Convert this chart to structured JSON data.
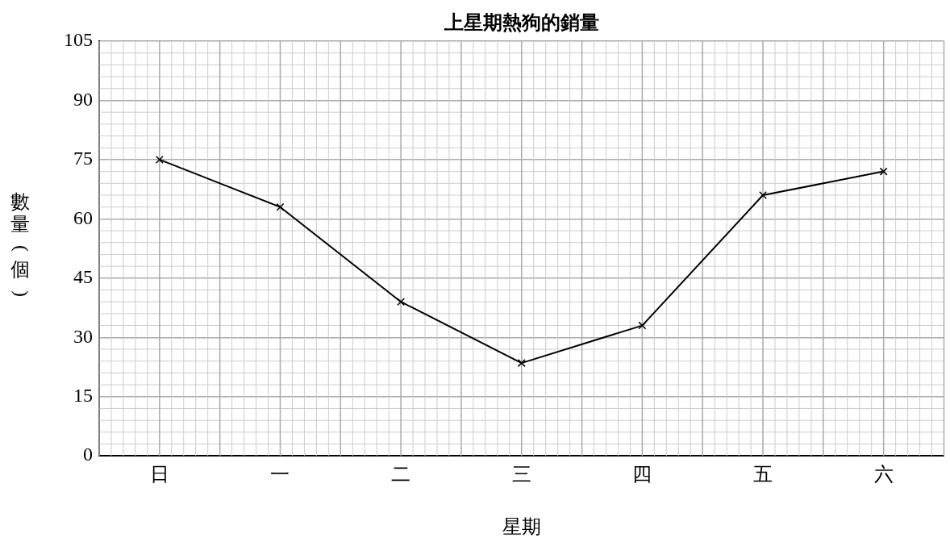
{
  "chart_data": {
    "type": "line",
    "title": "上星期熱狗的銷量",
    "xlabel": "星期",
    "ylabel": "數量(個)",
    "categories": [
      "日",
      "一",
      "二",
      "三",
      "四",
      "五",
      "六"
    ],
    "series": [
      {
        "color": "#000000",
        "values": [
          75,
          63,
          39,
          23.5,
          33,
          66,
          72
        ]
      }
    ],
    "ylim": [
      0,
      105
    ],
    "yticks": [
      0,
      15,
      30,
      45,
      60,
      75,
      90,
      105
    ],
    "grid": true,
    "marker": "cross",
    "line_style": "solid",
    "legend": false
  }
}
